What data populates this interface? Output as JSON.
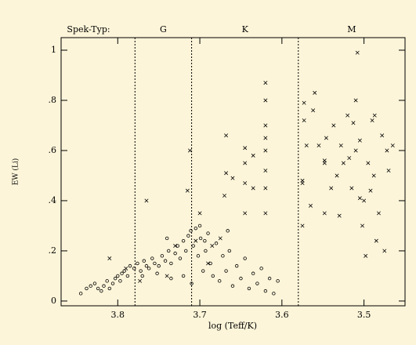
{
  "chart_data": {
    "type": "scatter",
    "x_label": "log (Teff/K)",
    "y_label": "EW (Li)",
    "spectral_caption": "Spek-Typ:",
    "spectral_boundaries": [
      3.779,
      3.71,
      3.58
    ],
    "spectral_types": [
      "G",
      "K",
      "M"
    ],
    "xlim": [
      3.869,
      3.45
    ],
    "ylim": [
      -0.019,
      1.05
    ],
    "xticks": [
      3.8,
      3.7,
      3.6,
      3.5
    ],
    "yticks": [
      0,
      {
        "value": 0.2,
        "label": ".2"
      },
      {
        "value": 0.4,
        "label": ".4"
      },
      {
        "value": 0.6,
        "label": ".6"
      },
      {
        "value": 0.8,
        "label": ".8"
      },
      1
    ],
    "series": [
      {
        "marker": "circle",
        "color": "#000000",
        "x": [
          3.845,
          3.838,
          3.833,
          3.828,
          3.824,
          3.82,
          3.817,
          3.813,
          3.81,
          3.806,
          3.803,
          3.8,
          3.797,
          3.795,
          3.792,
          3.788,
          3.785,
          3.78,
          3.776,
          3.772,
          3.768,
          3.765,
          3.762,
          3.758,
          3.755,
          3.75,
          3.746,
          3.742,
          3.738,
          3.735,
          3.73,
          3.727,
          3.724,
          3.72,
          3.717,
          3.714,
          3.711,
          3.708,
          3.705,
          3.702,
          3.699,
          3.696,
          3.693,
          3.69,
          3.687,
          3.684,
          3.68,
          3.676,
          3.672,
          3.668,
          3.664,
          3.66,
          3.655,
          3.65,
          3.645,
          3.64,
          3.635,
          3.63,
          3.625,
          3.62,
          3.615,
          3.61,
          3.605,
          3.72,
          3.71,
          3.735,
          3.752,
          3.77,
          3.74,
          3.7,
          3.694,
          3.666
        ],
        "values": [
          0.03,
          0.05,
          0.06,
          0.07,
          0.05,
          0.04,
          0.06,
          0.08,
          0.05,
          0.07,
          0.09,
          0.1,
          0.08,
          0.11,
          0.12,
          0.1,
          0.14,
          0.13,
          0.15,
          0.12,
          0.16,
          0.14,
          0.13,
          0.17,
          0.15,
          0.14,
          0.18,
          0.16,
          0.2,
          0.15,
          0.19,
          0.22,
          0.17,
          0.24,
          0.2,
          0.26,
          0.28,
          0.22,
          0.29,
          0.18,
          0.25,
          0.12,
          0.2,
          0.27,
          0.15,
          0.1,
          0.23,
          0.08,
          0.18,
          0.12,
          0.2,
          0.06,
          0.14,
          0.09,
          0.17,
          0.05,
          0.11,
          0.07,
          0.13,
          0.04,
          0.09,
          0.03,
          0.08,
          0.1,
          0.07,
          0.09,
          0.11,
          0.1,
          0.25,
          0.3,
          0.24,
          0.28
        ]
      },
      {
        "marker": "cross",
        "color": "#000000",
        "x": [
          3.81,
          3.79,
          3.773,
          3.765,
          3.74,
          3.73,
          3.715,
          3.712,
          3.705,
          3.7,
          3.69,
          3.685,
          3.675,
          3.67,
          3.668,
          3.668,
          3.66,
          3.645,
          3.645,
          3.645,
          3.645,
          3.635,
          3.635,
          3.62,
          3.62,
          3.62,
          3.62,
          3.62,
          3.62,
          3.62,
          3.62,
          3.575,
          3.575,
          3.575,
          3.573,
          3.573,
          3.57,
          3.565,
          3.562,
          3.56,
          3.555,
          3.548,
          3.548,
          3.548,
          3.546,
          3.54,
          3.537,
          3.533,
          3.53,
          3.528,
          3.525,
          3.52,
          3.518,
          3.515,
          3.513,
          3.51,
          3.508,
          3.505,
          3.502,
          3.5,
          3.498,
          3.495,
          3.492,
          3.49,
          3.488,
          3.485,
          3.482,
          3.478,
          3.475,
          3.472,
          3.47,
          3.465,
          3.505,
          3.487,
          3.51
        ],
        "values": [
          0.17,
          0.13,
          0.08,
          0.4,
          0.1,
          0.22,
          0.44,
          0.6,
          0.24,
          0.35,
          0.15,
          0.22,
          0.25,
          0.42,
          0.51,
          0.66,
          0.49,
          0.35,
          0.47,
          0.55,
          0.61,
          0.45,
          0.58,
          0.35,
          0.45,
          0.52,
          0.6,
          0.65,
          0.7,
          0.8,
          0.87,
          0.47,
          0.3,
          0.48,
          0.72,
          0.79,
          0.62,
          0.38,
          0.76,
          0.83,
          0.62,
          0.35,
          0.55,
          0.56,
          0.65,
          0.45,
          0.7,
          0.5,
          0.34,
          0.62,
          0.55,
          0.74,
          0.57,
          0.45,
          0.71,
          0.6,
          0.99,
          0.64,
          0.3,
          0.4,
          0.18,
          0.55,
          0.44,
          0.72,
          0.5,
          0.24,
          0.35,
          0.66,
          0.2,
          0.6,
          0.52,
          0.62,
          0.41,
          0.74,
          0.8
        ]
      }
    ]
  }
}
